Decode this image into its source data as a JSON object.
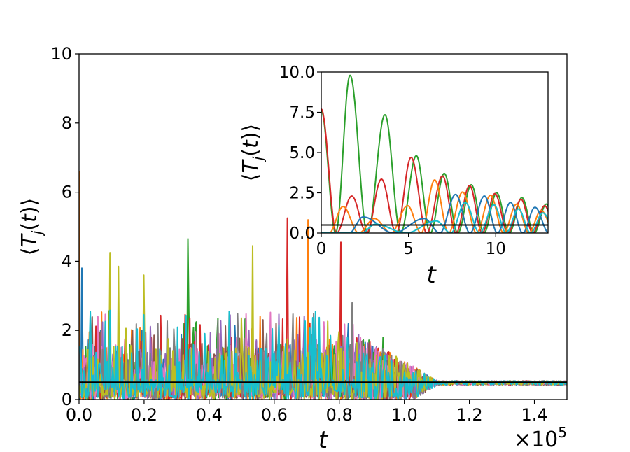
{
  "chart_data": [
    {
      "id": "main",
      "type": "line",
      "xlabel": "t",
      "ylabel": "⟨T_j(t)⟩",
      "ylabel_parts": {
        "open": "⟨",
        "base": "T",
        "sub": "j",
        "args": "(t)",
        "close": "⟩"
      },
      "x_offset_text": {
        "base": "×10",
        "exp": "5"
      },
      "xlim": [
        0.0,
        1.5
      ],
      "ylim": [
        0,
        10
      ],
      "x_ticks": [
        0.0,
        0.2,
        0.4,
        0.6,
        0.8,
        1.0,
        1.2,
        1.4
      ],
      "x_tick_labels": [
        "0.0",
        "0.2",
        "0.4",
        "0.6",
        "0.8",
        "1.0",
        "1.2",
        "1.4"
      ],
      "y_ticks": [
        0,
        2,
        4,
        6,
        8,
        10
      ],
      "y_tick_labels": [
        "0",
        "2",
        "4",
        "6",
        "8",
        "10"
      ],
      "reference_line": {
        "y": 0.5,
        "color": "#000000"
      },
      "series_colors": [
        "#1f77b4",
        "#ff7f0e",
        "#2ca02c",
        "#d62728",
        "#9467bd",
        "#8c564b",
        "#e377c2",
        "#7f7f7f",
        "#bcbd22",
        "#17becf"
      ],
      "noisy_regime_end": 0.85,
      "relaxation_end": 1.1,
      "equilibrium_value": 0.48,
      "peaks": [
        {
          "x": 0.0,
          "y": 6.6,
          "color": "#ff7f0e"
        },
        {
          "x": 0.01,
          "y": 3.8,
          "color": "#1f77b4"
        },
        {
          "x": 0.095,
          "y": 4.25,
          "color": "#bcbd22"
        },
        {
          "x": 0.12,
          "y": 3.85,
          "color": "#bcbd22"
        },
        {
          "x": 0.2,
          "y": 3.6,
          "color": "#bcbd22"
        },
        {
          "x": 0.335,
          "y": 4.65,
          "color": "#2ca02c"
        },
        {
          "x": 0.535,
          "y": 4.45,
          "color": "#bcbd22"
        },
        {
          "x": 0.64,
          "y": 5.25,
          "color": "#d62728"
        },
        {
          "x": 0.705,
          "y": 5.2,
          "color": "#ff7f0e"
        },
        {
          "x": 0.805,
          "y": 4.55,
          "color": "#d62728"
        },
        {
          "x": 0.84,
          "y": 2.8,
          "color": "#7f7f7f"
        },
        {
          "x": 0.935,
          "y": 1.8,
          "color": "#2ca02c"
        }
      ]
    },
    {
      "id": "inset",
      "type": "line",
      "xlabel": "t",
      "ylabel": "⟨T_j(t)⟩",
      "ylabel_parts": {
        "open": "⟨",
        "base": "T",
        "sub": "j",
        "args": "(t)",
        "close": "⟩"
      },
      "xlim": [
        0,
        13
      ],
      "ylim": [
        0,
        10
      ],
      "x_ticks": [
        0,
        5,
        10
      ],
      "x_tick_labels": [
        "0",
        "5",
        "10"
      ],
      "y_ticks": [
        0,
        2.5,
        5,
        7.5,
        10
      ],
      "y_tick_labels": [
        "0.0",
        "2.5",
        "5.0",
        "7.5",
        "10.0"
      ],
      "reference_line": {
        "y": 0.5,
        "color": "#000000"
      },
      "series": [
        {
          "name": "green",
          "color": "#2ca02c",
          "peaks": [
            {
              "x": 0,
              "y": 7.6
            },
            {
              "x": 1.65,
              "y": 9.8
            },
            {
              "x": 3.65,
              "y": 7.35
            },
            {
              "x": 5.45,
              "y": 4.8
            },
            {
              "x": 7.05,
              "y": 3.7
            },
            {
              "x": 8.6,
              "y": 3.0
            },
            {
              "x": 10.05,
              "y": 2.5
            },
            {
              "x": 11.5,
              "y": 2.2
            },
            {
              "x": 12.9,
              "y": 1.8
            }
          ]
        },
        {
          "name": "red",
          "color": "#d62728",
          "peaks": [
            {
              "x": 0,
              "y": 7.7
            },
            {
              "x": 1.75,
              "y": 2.3
            },
            {
              "x": 3.45,
              "y": 3.35
            },
            {
              "x": 5.15,
              "y": 4.7
            },
            {
              "x": 6.95,
              "y": 3.55
            },
            {
              "x": 8.5,
              "y": 2.95
            },
            {
              "x": 9.95,
              "y": 2.45
            },
            {
              "x": 11.45,
              "y": 2.1
            },
            {
              "x": 12.8,
              "y": 1.7
            }
          ]
        },
        {
          "name": "orange",
          "color": "#ff7f0e",
          "peaks": [
            {
              "x": 1.25,
              "y": 1.65
            },
            {
              "x": 3.05,
              "y": 0.9
            },
            {
              "x": 4.95,
              "y": 1.7
            },
            {
              "x": 6.5,
              "y": 3.3
            },
            {
              "x": 8.1,
              "y": 2.55
            },
            {
              "x": 9.7,
              "y": 2.35
            },
            {
              "x": 11.2,
              "y": 1.8
            },
            {
              "x": 12.6,
              "y": 1.4
            }
          ]
        },
        {
          "name": "blue",
          "color": "#1f77b4",
          "peaks": [
            {
              "x": 2.4,
              "y": 1.0
            },
            {
              "x": 5.9,
              "y": 0.9
            },
            {
              "x": 7.7,
              "y": 2.4
            },
            {
              "x": 9.35,
              "y": 2.3
            },
            {
              "x": 10.85,
              "y": 1.9
            },
            {
              "x": 12.25,
              "y": 1.6
            }
          ]
        },
        {
          "name": "cyan",
          "color": "#17becf",
          "peaks": [
            {
              "x": 3.1,
              "y": 0.55
            },
            {
              "x": 6.6,
              "y": 0.75
            },
            {
              "x": 8.25,
              "y": 1.9
            },
            {
              "x": 9.9,
              "y": 1.75
            },
            {
              "x": 11.3,
              "y": 1.5
            },
            {
              "x": 12.7,
              "y": 1.25
            }
          ]
        }
      ]
    }
  ]
}
